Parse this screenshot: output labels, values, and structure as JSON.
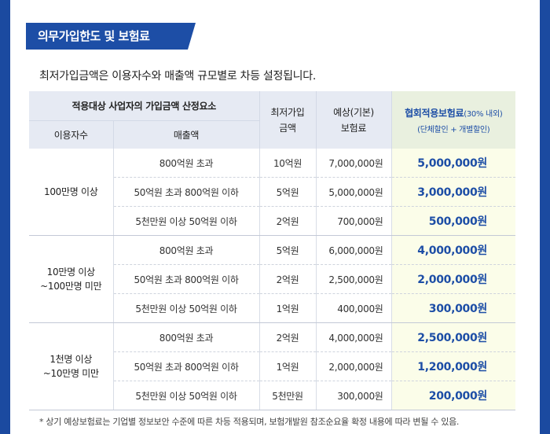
{
  "section_title": "의무가입한도 및 보험료",
  "intro_text": "최저가입금액은 이용자수와 매출액 규모별로 차등 설정됩니다.",
  "table": {
    "header": {
      "group": "적용대상 사업자의 가입금액 산정요소",
      "users": "이용자수",
      "sales": "매출액",
      "min_amount": [
        "최저가입",
        "금액"
      ],
      "premium": [
        "예상(기본)",
        "보험료"
      ],
      "insurance_title": "협회적용보험료",
      "insurance_note": "(30% 내외)",
      "insurance_sub": "(단체할인 + 개별할인)"
    },
    "groups": [
      {
        "users": [
          "100만명 이상"
        ],
        "rows": [
          {
            "sales": "800억원 초과",
            "min": "10억원",
            "premium": "7,000,000원",
            "insurance": "5,000,000원"
          },
          {
            "sales": "50억원 초과 800억원 이하",
            "min": "5억원",
            "premium": "5,000,000원",
            "insurance": "3,000,000원"
          },
          {
            "sales": "5천만원 이상 50억원 이하",
            "min": "2억원",
            "premium": "700,000원",
            "insurance": "500,000원"
          }
        ]
      },
      {
        "users": [
          "10만명 이상",
          "~100만명 미만"
        ],
        "rows": [
          {
            "sales": "800억원 초과",
            "min": "5억원",
            "premium": "6,000,000원",
            "insurance": "4,000,000원"
          },
          {
            "sales": "50억원 초과 800억원 이하",
            "min": "2억원",
            "premium": "2,500,000원",
            "insurance": "2,000,000원"
          },
          {
            "sales": "5천만원 이상 50억원 이하",
            "min": "1억원",
            "premium": "400,000원",
            "insurance": "300,000원"
          }
        ]
      },
      {
        "users": [
          "1천명 이상",
          "~10만명 미만"
        ],
        "rows": [
          {
            "sales": "800억원 초과",
            "min": "2억원",
            "premium": "4,000,000원",
            "insurance": "2,500,000원"
          },
          {
            "sales": "50억원 초과 800억원 이하",
            "min": "1억원",
            "premium": "2,000,000원",
            "insurance": "1,200,000원"
          },
          {
            "sales": "5천만원 이상 50억원 이하",
            "min": "5천만원",
            "premium": "300,000원",
            "insurance": "200,000원"
          }
        ]
      }
    ]
  },
  "footnote": "* 상기 예상보험료는 기업별 정보보안 수준에 따른 차등 적용되며, 보험개발원 참조순요율 확정 내용에 따라 변될 수 있음.",
  "colors": {
    "brand_blue": "#1d4ea6",
    "header_bg": "#e6eaf3",
    "insurance_header_bg": "#e9f0df",
    "insurance_cell_bg": "#fbfde9"
  }
}
